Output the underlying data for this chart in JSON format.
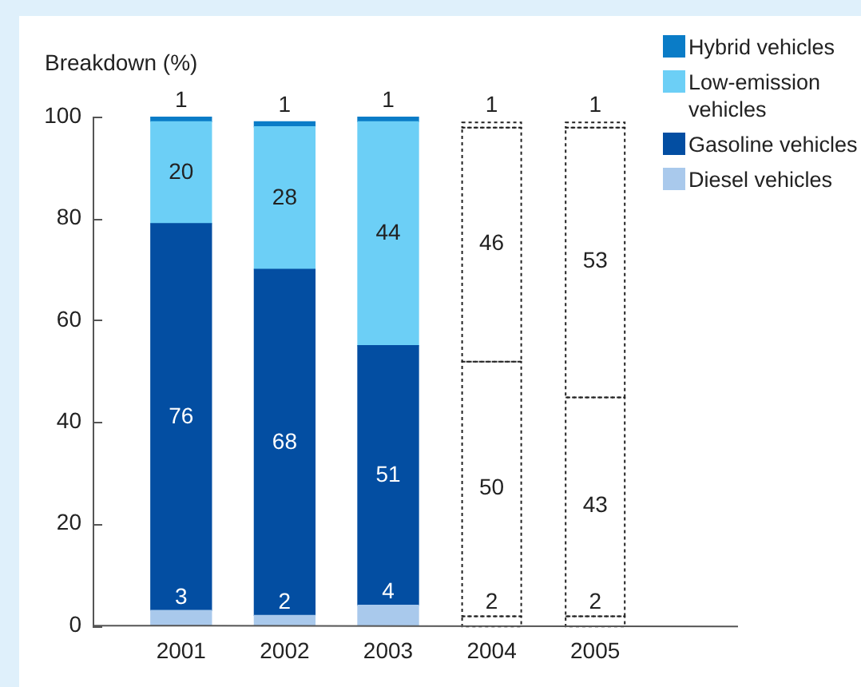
{
  "chart_data": {
    "type": "bar",
    "ylabel": "Breakdown (%)",
    "categories": [
      "2001",
      "2002",
      "2003",
      "2004",
      "2005"
    ],
    "stacked": true,
    "series": [
      {
        "name": "Diesel vehicles",
        "color": "#a9c9ec",
        "colors": [
          "#a9c9ec",
          "#a9c9ec",
          "#a9c9ec",
          "#ffffff",
          "#ffffff"
        ],
        "values": [
          3,
          2,
          4,
          2,
          2
        ]
      },
      {
        "name": "Gasoline vehicles",
        "color": "#034ea2",
        "colors": [
          "#034ea2",
          "#034ea2",
          "#034ea2",
          "#ffffff",
          "#ffffff"
        ],
        "values": [
          76,
          68,
          51,
          50,
          43
        ]
      },
      {
        "name": "Low-emission vehicles",
        "color": "#6ccff6",
        "colors": [
          "#6ccff6",
          "#6ccff6",
          "#6ccff6",
          "#ffffff",
          "#ffffff"
        ],
        "values": [
          20,
          28,
          44,
          46,
          53
        ]
      },
      {
        "name": "Hybrid vehicles",
        "color": "#0a7cc7",
        "colors": [
          "#0a7cc7",
          "#0a7cc7",
          "#0a7cc7",
          "#ffffff",
          "#ffffff"
        ],
        "values": [
          1,
          1,
          1,
          1,
          1
        ]
      }
    ],
    "ylim": [
      0,
      100
    ],
    "yticks": [
      0,
      20,
      40,
      60,
      80,
      100
    ],
    "grid": false,
    "legend": "top right",
    "data_labels": true
  }
}
